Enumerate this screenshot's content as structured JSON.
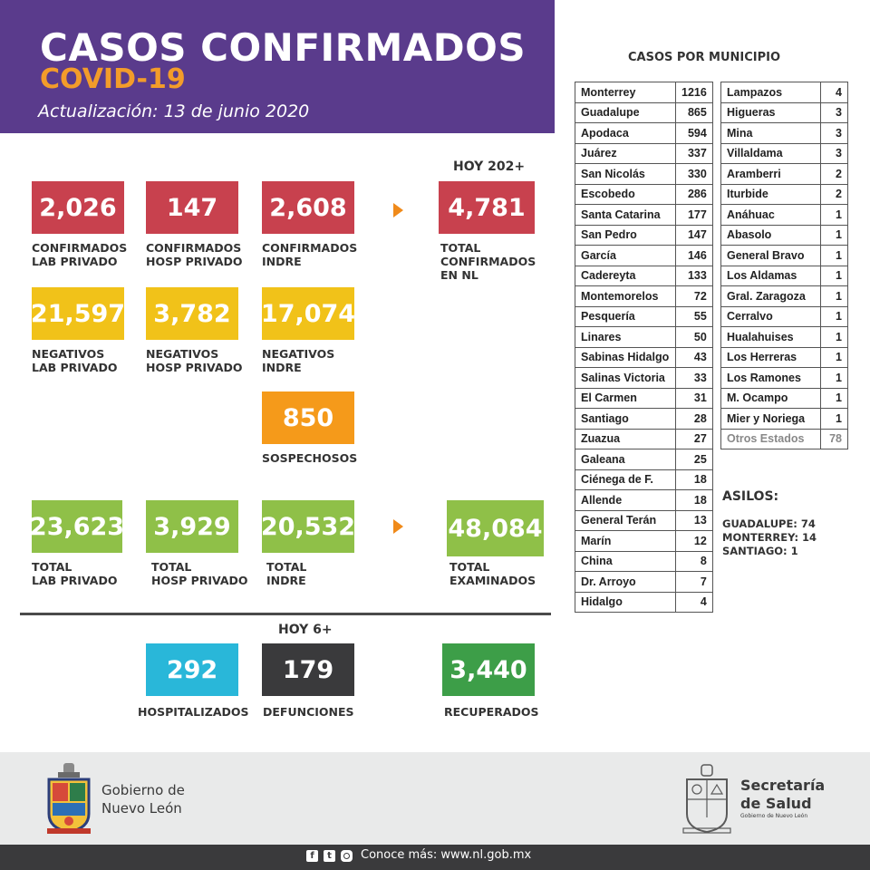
{
  "header": {
    "title": "CASOS CONFIRMADOS",
    "subtitle": "COVID-19",
    "update": "Actualización: 13 de junio 2020"
  },
  "confirmados": {
    "hoy_label": "HOY 202+",
    "lab_privado": {
      "value": "2,026",
      "label": "CONFIRMADOS\nLAB PRIVADO"
    },
    "hosp_privado": {
      "value": "147",
      "label": "CONFIRMADOS\nHOSP PRIVADO"
    },
    "indre": {
      "value": "2,608",
      "label": "CONFIRMADOS\nINDRE"
    },
    "total": {
      "value": "4,781",
      "label": "TOTAL\nCONFIRMADOS\nEN NL"
    }
  },
  "negativos": {
    "lab_privado": {
      "value": "21,597",
      "label": "NEGATIVOS\nLAB PRIVADO"
    },
    "hosp_privado": {
      "value": "3,782",
      "label": "NEGATIVOS\nHOSP PRIVADO"
    },
    "indre": {
      "value": "17,074",
      "label": "NEGATIVOS\nINDRE"
    }
  },
  "sospechosos": {
    "value": "850",
    "label": "SOSPECHOSOS"
  },
  "totales": {
    "lab_privado": {
      "value": "23,623",
      "label": "TOTAL\nLAB PRIVADO"
    },
    "hosp_privado": {
      "value": "3,929",
      "label": "TOTAL\nHOSP PRIVADO"
    },
    "indre": {
      "value": "20,532",
      "label": "TOTAL\nINDRE"
    },
    "examinados": {
      "value": "48,084",
      "label": "TOTAL\nEXAMINADOS"
    }
  },
  "outcomes": {
    "hoy_label": "HOY 6+",
    "hospitalizados": {
      "value": "292",
      "label": "HOSPITALIZADOS"
    },
    "defunciones": {
      "value": "179",
      "label": "DEFUNCIONES"
    },
    "recuperados": {
      "value": "3,440",
      "label": "RECUPERADOS"
    }
  },
  "municipios": {
    "title": "CASOS POR MUNICIPIO",
    "col1": [
      [
        "Monterrey",
        "1216"
      ],
      [
        "Guadalupe",
        "865"
      ],
      [
        "Apodaca",
        "594"
      ],
      [
        "Juárez",
        "337"
      ],
      [
        "San Nicolás",
        "330"
      ],
      [
        "Escobedo",
        "286"
      ],
      [
        "Santa Catarina",
        "177"
      ],
      [
        "San Pedro",
        "147"
      ],
      [
        "García",
        "146"
      ],
      [
        "Cadereyta",
        "133"
      ],
      [
        "Montemorelos",
        "72"
      ],
      [
        "Pesquería",
        "55"
      ],
      [
        "Linares",
        "50"
      ],
      [
        "Sabinas Hidalgo",
        "43"
      ],
      [
        "Salinas Victoria",
        "33"
      ],
      [
        "El Carmen",
        "31"
      ],
      [
        "Santiago",
        "28"
      ],
      [
        "Zuazua",
        "27"
      ],
      [
        "Galeana",
        "25"
      ],
      [
        "Ciénega de F.",
        "18"
      ],
      [
        "Allende",
        "18"
      ],
      [
        "General Terán",
        "13"
      ],
      [
        "Marín",
        "12"
      ],
      [
        "China",
        "8"
      ],
      [
        "Dr. Arroyo",
        "7"
      ],
      [
        "Hidalgo",
        "4"
      ]
    ],
    "col2": [
      [
        "Lampazos",
        "4"
      ],
      [
        "Higueras",
        "3"
      ],
      [
        "Mina",
        "3"
      ],
      [
        "Villaldama",
        "3"
      ],
      [
        "Aramberri",
        "2"
      ],
      [
        "Iturbide",
        "2"
      ],
      [
        "Anáhuac",
        "1"
      ],
      [
        "Abasolo",
        "1"
      ],
      [
        "General Bravo",
        "1"
      ],
      [
        "Los Aldamas",
        "1"
      ],
      [
        "Gral. Zaragoza",
        "1"
      ],
      [
        "Cerralvo",
        "1"
      ],
      [
        "Hualahuises",
        "1"
      ],
      [
        "Los Herreras",
        "1"
      ],
      [
        "Los Ramones",
        "1"
      ],
      [
        "M. Ocampo",
        "1"
      ],
      [
        "Mier y Noriega",
        "1"
      ],
      [
        "Otros Estados",
        "78"
      ]
    ]
  },
  "asilos": {
    "title": "ASILOS:",
    "items": [
      "GUADALUPE: 74",
      "MONTERREY: 14",
      "SANTIAGO: 1"
    ]
  },
  "footer": {
    "gobierno": "Gobierno de\nNuevo León",
    "secretaria": "Secretaría\nde Salud",
    "secretaria_small": "Gobierno de Nuevo León",
    "conoce": "Conoce más: www.nl.gob.mx",
    "social_icons": [
      "facebook-icon",
      "twitter-icon",
      "instagram-icon"
    ]
  },
  "colors": {
    "purple": "#5a3b8c",
    "orange_text": "#f39c2a",
    "red": "#c8414e",
    "yellow": "#f1c219",
    "orange": "#f59a1a",
    "green": "#8fc048",
    "blue": "#29b7d9",
    "dark": "#3a3a3c",
    "dark_green": "#3d9e48"
  }
}
